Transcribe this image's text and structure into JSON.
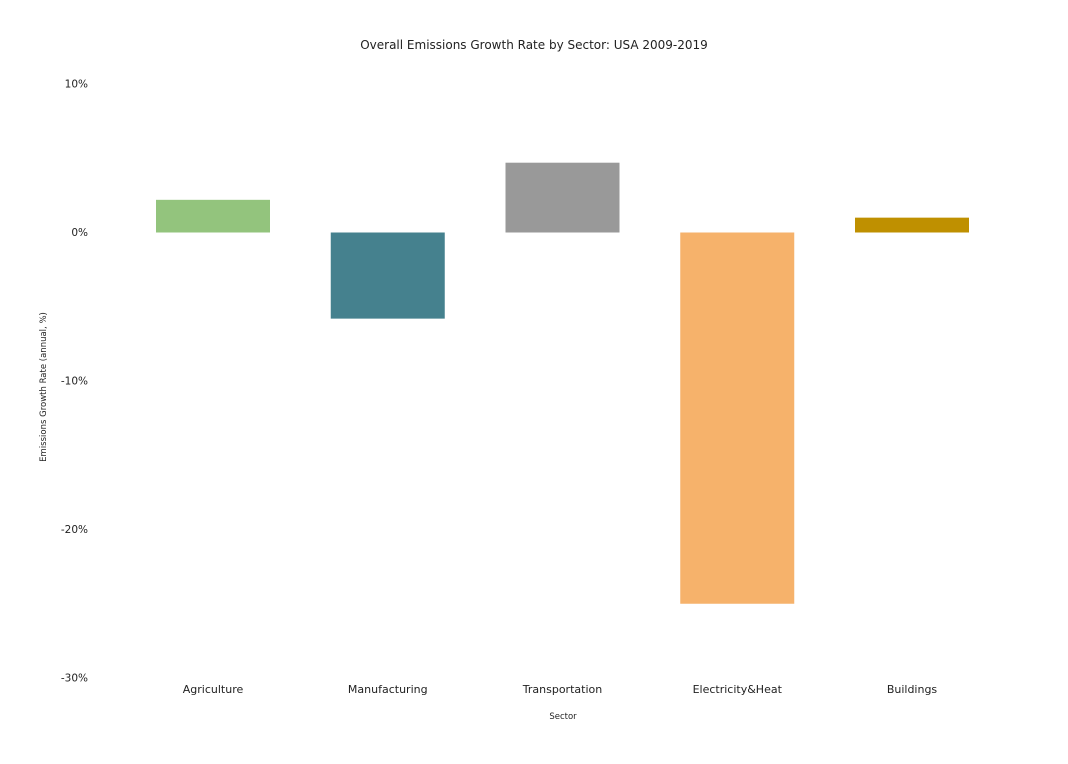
{
  "chart_data": {
    "type": "bar",
    "title": "Overall Emissions Growth Rate by Sector: USA 2009-2019",
    "xlabel": "Sector",
    "ylabel": "Emissions Growth Rate (annual, %)",
    "categories": [
      "Agriculture",
      "Manufacturing",
      "Transportation",
      "Electricity&Heat",
      "Buildings"
    ],
    "values": [
      2.2,
      -5.8,
      4.7,
      -25.0,
      1.0
    ],
    "colors": [
      "#93c47d",
      "#45818e",
      "#999999",
      "#f6b26b",
      "#bf9000"
    ],
    "ylim": [
      -30,
      10
    ],
    "yticks": [
      10,
      0,
      -10,
      -20,
      -30
    ],
    "ytick_labels": [
      "10%",
      "0%",
      "-10%",
      "-20%",
      "-30%"
    ],
    "grid": false,
    "legend": "none"
  }
}
